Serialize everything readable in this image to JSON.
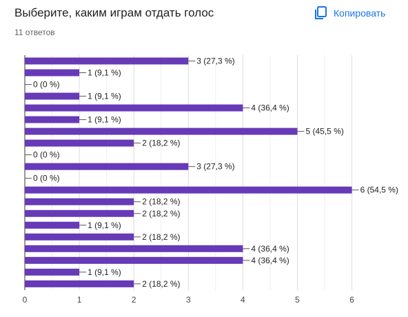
{
  "header": {
    "title": "Выберите, каким играм отдать голос",
    "responses": "11 ответов",
    "copy_label": "Копировать"
  },
  "colors": {
    "bar": "#673ab7",
    "accent": "#1a73e8",
    "grid": "#e0e0e0",
    "axis": "#757575"
  },
  "chart_data": {
    "type": "bar",
    "orientation": "horizontal",
    "title": "Выберите, каким играм отдать голос",
    "xlim": [
      0,
      6
    ],
    "x_ticks": [
      "0",
      "1",
      "2",
      "3",
      "4",
      "5",
      "6"
    ],
    "grid": true,
    "values": [
      3,
      1,
      0,
      1,
      4,
      1,
      5,
      2,
      0,
      3,
      0,
      6,
      2,
      2,
      1,
      2,
      4,
      4,
      1,
      2
    ],
    "labels": [
      "3 (27,3 %)",
      "1 (9,1 %)",
      "0 (0 %)",
      "1 (9,1 %)",
      "4 (36,4 %)",
      "1 (9,1 %)",
      "5 (45,5 %)",
      "2 (18,2 %)",
      "0 (0 %)",
      "3 (27,3 %)",
      "0 (0 %)",
      "6 (54,5 %)",
      "2 (18,2 %)",
      "2 (18,2 %)",
      "1 (9,1 %)",
      "2 (18,2 %)",
      "4 (36,4 %)",
      "4 (36,4 %)",
      "1 (9,1 %)",
      "2 (18,2 %)"
    ]
  }
}
